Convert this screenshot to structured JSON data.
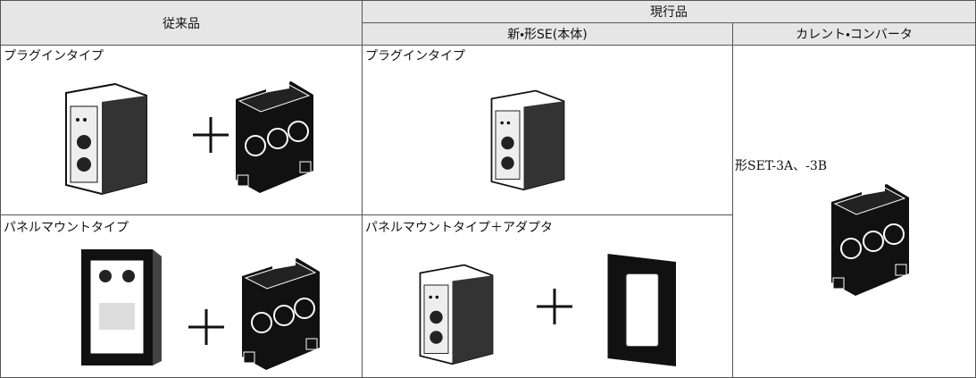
{
  "table": {
    "header": {
      "legacy": "従来品",
      "current": "現行品",
      "main_unit": "新・形SE(本体)",
      "converter": "カレント・コンバータ"
    },
    "rows": [
      {
        "legacy": "プラグインタイプ",
        "current": "プラグインタイプ"
      },
      {
        "legacy": "パネルマウントタイプ",
        "current": "パネルマウントタイプ＋アダプタ"
      }
    ],
    "converter_model": "形SET-3A、-3B"
  }
}
